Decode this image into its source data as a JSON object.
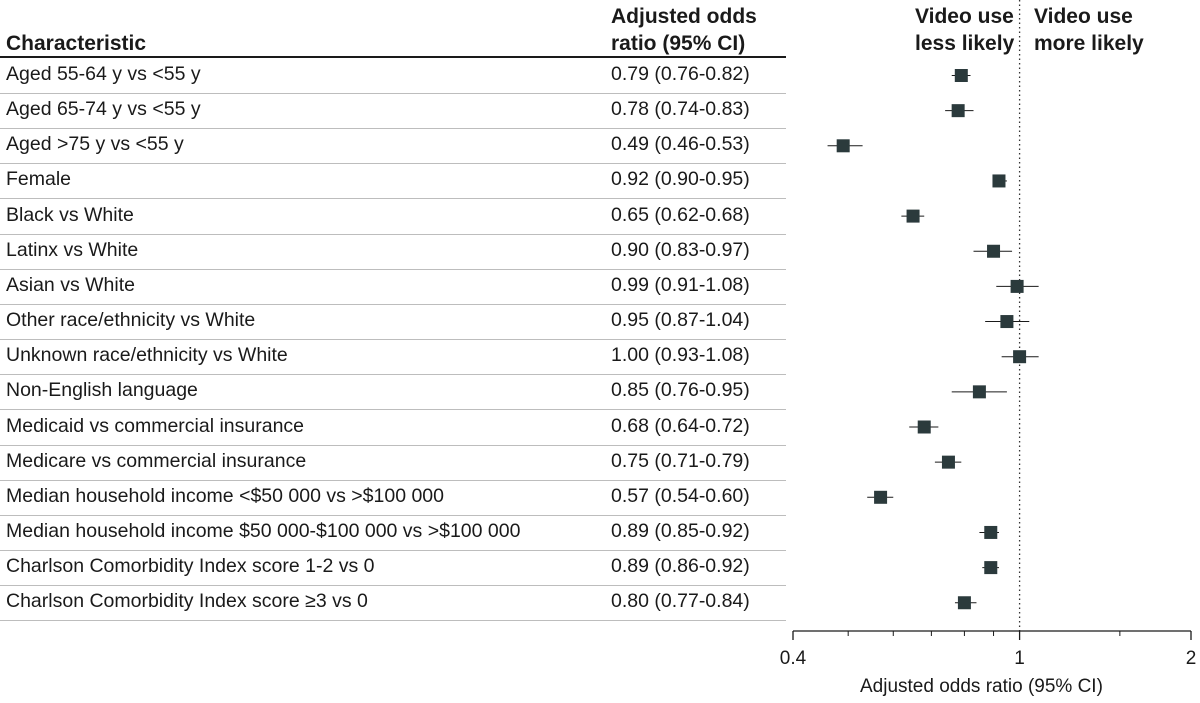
{
  "headers": {
    "characteristic": "Characteristic",
    "or_line1": "Adjusted odds",
    "or_line2": "ratio (95% CI)",
    "less_line1": "Video use",
    "less_line2": "less likely",
    "more_line1": "Video use",
    "more_line2": "more likely"
  },
  "rows": [
    {
      "label": "Aged 55-64 y vs <55 y",
      "ci_text": "0.79 (0.76-0.82)"
    },
    {
      "label": "Aged 65-74 y vs <55 y",
      "ci_text": "0.78 (0.74-0.83)"
    },
    {
      "label": "Aged >75 y vs <55 y",
      "ci_text": "0.49 (0.46-0.53)"
    },
    {
      "label": "Female",
      "ci_text": "0.92 (0.90-0.95)"
    },
    {
      "label": "Black vs White",
      "ci_text": "0.65 (0.62-0.68)"
    },
    {
      "label": "Latinx vs White",
      "ci_text": "0.90 (0.83-0.97)"
    },
    {
      "label": "Asian vs White",
      "ci_text": "0.99 (0.91-1.08)"
    },
    {
      "label": "Other race/ethnicity vs White",
      "ci_text": "0.95 (0.87-1.04)"
    },
    {
      "label": "Unknown race/ethnicity vs White",
      "ci_text": "1.00 (0.93-1.08)"
    },
    {
      "label": "Non-English language",
      "ci_text": "0.85 (0.76-0.95)"
    },
    {
      "label": "Medicaid vs commercial insurance",
      "ci_text": "0.68 (0.64-0.72)"
    },
    {
      "label": "Medicare vs commercial insurance",
      "ci_text": "0.75 (0.71-0.79)"
    },
    {
      "label": "Median household income <$50 000 vs >$100 000",
      "ci_text": "0.57 (0.54-0.60)"
    },
    {
      "label": "Median household income $50 000-$100 000 vs >$100 000",
      "ci_text": "0.89 (0.85-0.92)"
    },
    {
      "label": "Charlson Comorbidity Index score 1-2 vs 0",
      "ci_text": "0.89 (0.86-0.92)"
    },
    {
      "label": "Charlson Comorbidity Index score ≥3 vs 0",
      "ci_text": "0.80 (0.77-0.84)"
    }
  ],
  "chart_data": {
    "type": "forest",
    "xlabel": "Adjusted odds ratio (95% CI)",
    "x_scale": "log",
    "xlim": [
      0.4,
      2
    ],
    "x_ticks": [
      0.4,
      1,
      2
    ],
    "x_tick_labels": [
      "0.4",
      "1",
      "2"
    ],
    "reference_line": 1,
    "marker_color": "#2b3a3c",
    "points": [
      {
        "label": "Aged 55-64 y vs <55 y",
        "or": 0.79,
        "lo": 0.76,
        "hi": 0.82
      },
      {
        "label": "Aged 65-74 y vs <55 y",
        "or": 0.78,
        "lo": 0.74,
        "hi": 0.83
      },
      {
        "label": "Aged >75 y vs <55 y",
        "or": 0.49,
        "lo": 0.46,
        "hi": 0.53
      },
      {
        "label": "Female",
        "or": 0.92,
        "lo": 0.9,
        "hi": 0.95
      },
      {
        "label": "Black vs White",
        "or": 0.65,
        "lo": 0.62,
        "hi": 0.68
      },
      {
        "label": "Latinx vs White",
        "or": 0.9,
        "lo": 0.83,
        "hi": 0.97
      },
      {
        "label": "Asian vs White",
        "or": 0.99,
        "lo": 0.91,
        "hi": 1.08
      },
      {
        "label": "Other race/ethnicity vs White",
        "or": 0.95,
        "lo": 0.87,
        "hi": 1.04
      },
      {
        "label": "Unknown race/ethnicity vs White",
        "or": 1.0,
        "lo": 0.93,
        "hi": 1.08
      },
      {
        "label": "Non-English language",
        "or": 0.85,
        "lo": 0.76,
        "hi": 0.95
      },
      {
        "label": "Medicaid vs commercial insurance",
        "or": 0.68,
        "lo": 0.64,
        "hi": 0.72
      },
      {
        "label": "Medicare vs commercial insurance",
        "or": 0.75,
        "lo": 0.71,
        "hi": 0.79
      },
      {
        "label": "Median household income <$50 000 vs >$100 000",
        "or": 0.57,
        "lo": 0.54,
        "hi": 0.6
      },
      {
        "label": "Median household income $50 000-$100 000 vs >$100 000",
        "or": 0.89,
        "lo": 0.85,
        "hi": 0.92
      },
      {
        "label": "Charlson Comorbidity Index score 1-2 vs 0",
        "or": 0.89,
        "lo": 0.86,
        "hi": 0.92
      },
      {
        "label": "Charlson Comorbidity Index score ≥3 vs 0",
        "or": 0.8,
        "lo": 0.77,
        "hi": 0.84
      }
    ]
  }
}
